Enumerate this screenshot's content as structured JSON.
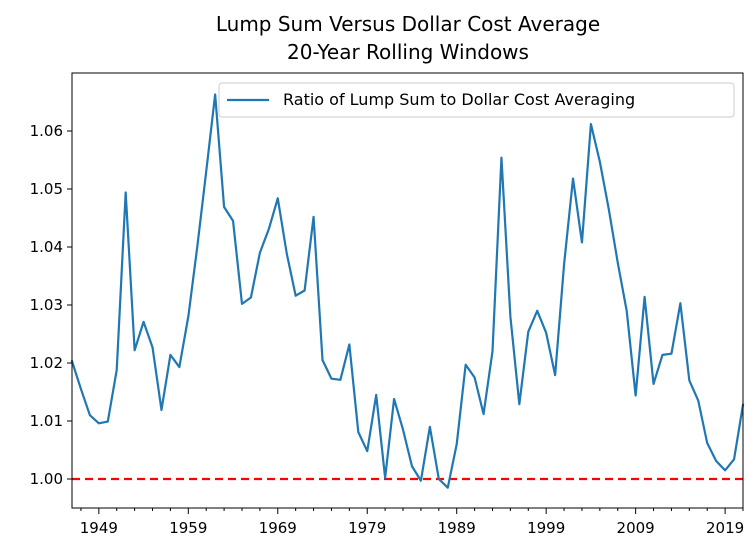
{
  "chart_data": {
    "type": "line",
    "title": "Lump Sum Versus Dollar Cost Average",
    "subtitle": "20-Year Rolling Windows",
    "xlabel": "",
    "ylabel": "",
    "xlim": [
      1946,
      2021
    ],
    "ylim": [
      0.995,
      1.07
    ],
    "xticks": [
      1949,
      1959,
      1969,
      1979,
      1989,
      1999,
      2009,
      2019
    ],
    "yticks": [
      1.0,
      1.01,
      1.02,
      1.03,
      1.04,
      1.05,
      1.06
    ],
    "ytick_labels": [
      "1.00",
      "1.01",
      "1.02",
      "1.03",
      "1.04",
      "1.05",
      "1.06"
    ],
    "grid": false,
    "legend_position": "top-right",
    "series": [
      {
        "name": "Ratio of Lump Sum to Dollar Cost Averaging",
        "color": "#1f77b4",
        "x": [
          1946,
          1947,
          1948,
          1949,
          1950,
          1951,
          1952,
          1953,
          1954,
          1955,
          1956,
          1957,
          1958,
          1959,
          1960,
          1961,
          1962,
          1963,
          1964,
          1965,
          1966,
          1967,
          1968,
          1969,
          1970,
          1971,
          1972,
          1973,
          1974,
          1975,
          1976,
          1977,
          1978,
          1979,
          1980,
          1981,
          1982,
          1983,
          1984,
          1985,
          1986,
          1987,
          1988,
          1989,
          1990,
          1991,
          1992,
          1993,
          1994,
          1995,
          1996,
          1997,
          1998,
          1999,
          2000,
          2001,
          2002,
          2003,
          2004,
          2005,
          2006,
          2007,
          2008,
          2009,
          2010,
          2011,
          2012,
          2013,
          2014,
          2015,
          2016,
          2017,
          2018,
          2019,
          2020,
          2021
        ],
        "y": [
          1.0203,
          1.0155,
          1.011,
          1.0096,
          1.0099,
          1.0188,
          1.0494,
          1.0222,
          1.0271,
          1.0227,
          1.0119,
          1.0214,
          1.0193,
          1.028,
          1.04,
          1.053,
          1.0663,
          1.0469,
          1.0445,
          1.0302,
          1.0313,
          1.039,
          1.0431,
          1.0484,
          1.0389,
          1.0316,
          1.0325,
          1.0452,
          1.0205,
          1.0173,
          1.0171,
          1.0232,
          1.0081,
          1.0048,
          1.0145,
          1.0002,
          1.0138,
          1.0085,
          1.0022,
          0.9997,
          1.009,
          1.0,
          0.9985,
          1.006,
          1.0197,
          1.0175,
          1.0112,
          1.022,
          1.0554,
          1.028,
          1.0129,
          1.0254,
          1.029,
          1.0252,
          1.0179,
          1.037,
          1.0518,
          1.0408,
          1.0612,
          1.0547,
          1.0465,
          1.0373,
          1.029,
          1.0144,
          1.0314,
          1.0164,
          1.0214,
          1.0216,
          1.0303,
          1.017,
          1.0135,
          1.0062,
          1.0031,
          1.0015,
          1.0034,
          1.0128
        ]
      }
    ],
    "reference_line": {
      "y": 1.0,
      "color": "#ff0000",
      "style": "dashed"
    }
  }
}
